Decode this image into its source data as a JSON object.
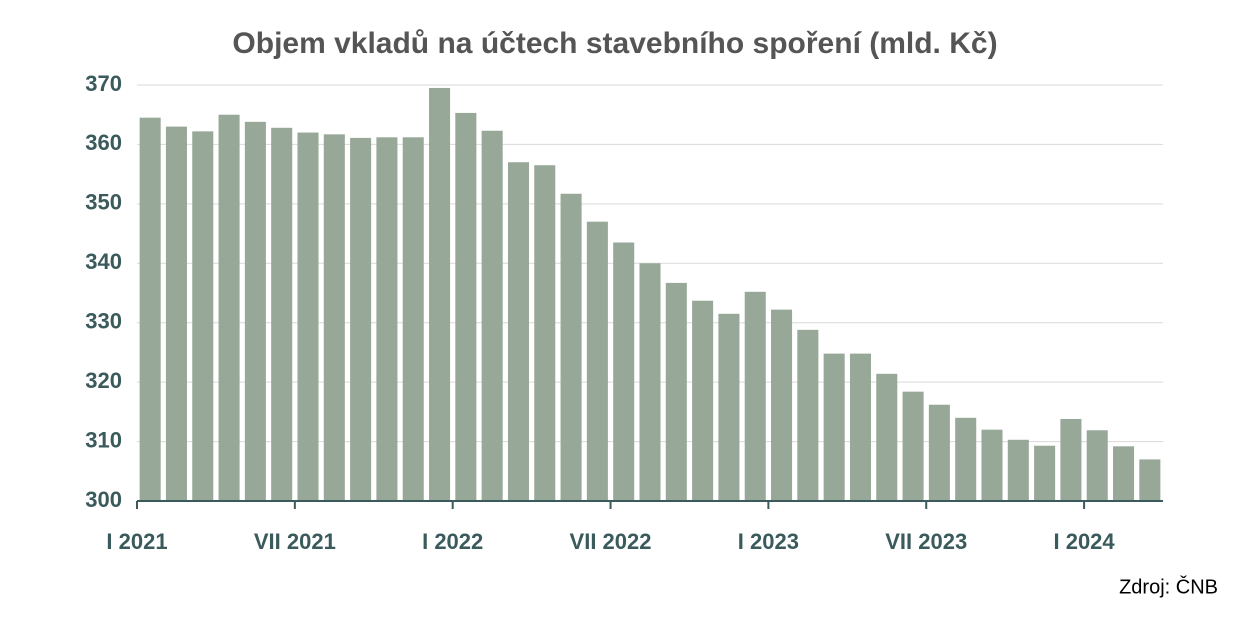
{
  "chart_data": {
    "type": "bar",
    "title": "Objem vkladů na účtech stavebního spoření (mld. Kč)",
    "source": "Zdroj: ČNB",
    "categories": [
      "I 2021",
      null,
      null,
      null,
      null,
      null,
      "VII 2021",
      null,
      null,
      null,
      null,
      null,
      "I 2022",
      null,
      null,
      null,
      null,
      null,
      "VII 2022",
      null,
      null,
      null,
      null,
      null,
      "I 2023",
      null,
      null,
      null,
      null,
      null,
      "VII 2023",
      null,
      null,
      null,
      null,
      null,
      "I 2024",
      null,
      null
    ],
    "values": [
      364.5,
      363,
      362.2,
      365,
      363.8,
      362.8,
      362,
      361.7,
      361.1,
      361.2,
      361.2,
      369.5,
      365.3,
      362.3,
      357,
      356.5,
      351.7,
      347,
      343.5,
      340,
      336.7,
      333.7,
      331.5,
      335.2,
      332.2,
      328.8,
      324.8,
      324.8,
      321.4,
      318.4,
      316.2,
      314,
      312,
      310.3,
      309.3,
      313.8,
      311.9,
      309.2,
      307
    ],
    "color": "#98a898",
    "ylim": [
      300,
      370
    ],
    "yticks": [
      300,
      310,
      320,
      330,
      340,
      350,
      360,
      370
    ],
    "grid": true
  }
}
